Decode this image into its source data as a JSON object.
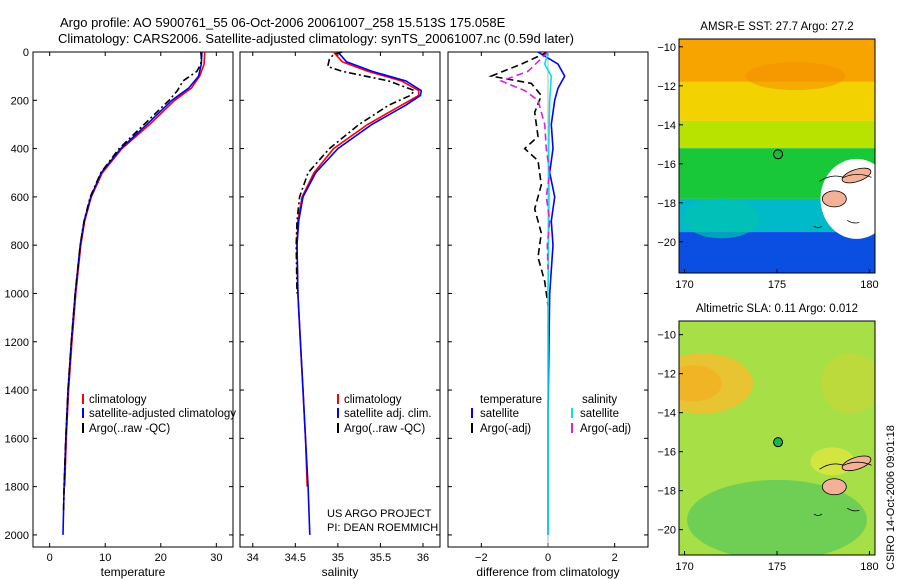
{
  "header": {
    "title_line1": "Argo profile: AO 5900761_55 06-Oct-2006 20061007_258 15.513S 175.058E",
    "title_line2": "Climatology: CARS2006. Satellite-adjusted climatology: synTS_20061007.nc (0.59d later)"
  },
  "credit": {
    "line1": "US ARGO PROJECT",
    "line2": "PI: DEAN ROEMMICH"
  },
  "side_label": "CSIRO 14-Oct-2006 09:01:18",
  "colors": {
    "climatology": "#ff0000",
    "satellite": "#0000ff",
    "argo": "#000000",
    "sat_sal": "#00e5e5",
    "argo_sal": "#e020e0"
  },
  "chart_data": [
    {
      "type": "line",
      "id": "temperature",
      "xlabel": "temperature",
      "ylabel": "",
      "xlim": [
        -3,
        33
      ],
      "ylim": [
        2050,
        0
      ],
      "xticks": [
        0,
        10,
        20,
        30
      ],
      "yticks": [
        0,
        200,
        400,
        600,
        800,
        1000,
        1200,
        1400,
        1600,
        1800,
        2000
      ],
      "legend": {
        "location": "lower-right",
        "entries": [
          "climatology",
          "satellite-adjusted climatology",
          "Argo(..raw -QC)"
        ]
      },
      "series": [
        {
          "name": "climatology",
          "color": "#ff0000",
          "style": "solid",
          "depth": [
            0,
            50,
            100,
            150,
            200,
            300,
            400,
            500,
            600,
            700,
            800,
            1000,
            1200,
            1400,
            1600,
            1800
          ],
          "values": [
            27.9,
            27.8,
            27.0,
            25.5,
            22.5,
            18.0,
            13.0,
            9.5,
            7.5,
            6.3,
            5.6,
            4.7,
            4.0,
            3.4,
            3.0,
            2.7
          ]
        },
        {
          "name": "satellite-adjusted climatology",
          "color": "#0000ff",
          "style": "solid",
          "depth": [
            0,
            50,
            100,
            150,
            200,
            300,
            400,
            500,
            600,
            700,
            800,
            1000,
            1200,
            1400,
            1600,
            1800,
            2000
          ],
          "values": [
            27.4,
            27.3,
            26.8,
            25.0,
            22.0,
            17.5,
            12.8,
            9.3,
            7.4,
            6.2,
            5.5,
            4.6,
            3.9,
            3.3,
            2.9,
            2.6,
            2.4
          ]
        },
        {
          "name": "Argo(..raw -QC)",
          "color": "#000000",
          "style": "dashdot",
          "depth": [
            0,
            20,
            50,
            80,
            120,
            160,
            200,
            300,
            400,
            500,
            600,
            700,
            800,
            1000,
            1200,
            1400,
            1600,
            1800,
            1900
          ],
          "values": [
            27.2,
            27.3,
            27.2,
            26.5,
            24.0,
            23.0,
            21.5,
            17.0,
            12.5,
            9.2,
            7.3,
            6.2,
            5.5,
            4.6,
            3.9,
            3.3,
            2.9,
            2.6,
            2.5
          ]
        }
      ]
    },
    {
      "type": "line",
      "id": "salinity",
      "xlabel": "salinity",
      "ylabel": "",
      "xlim": [
        33.85,
        36.2
      ],
      "ylim": [
        2050,
        0
      ],
      "xticks": [
        34,
        34.5,
        35,
        35.5,
        36
      ],
      "legend": {
        "location": "lower-right",
        "entries": [
          "climatology",
          "satellite adj. clim.",
          "Argo(..raw -QC)"
        ]
      },
      "series": [
        {
          "name": "climatology",
          "color": "#ff0000",
          "style": "solid",
          "depth": [
            0,
            40,
            80,
            120,
            160,
            180,
            220,
            300,
            400,
            500,
            600,
            700,
            800,
            1000,
            1200,
            1400,
            1600,
            1800
          ],
          "values": [
            34.95,
            35.05,
            35.35,
            35.75,
            35.95,
            35.95,
            35.75,
            35.35,
            34.95,
            34.72,
            34.58,
            34.53,
            34.52,
            34.53,
            34.56,
            34.59,
            34.62,
            34.64
          ]
        },
        {
          "name": "satellite adj. clim.",
          "color": "#0000ff",
          "style": "solid",
          "depth": [
            0,
            40,
            80,
            120,
            160,
            180,
            220,
            300,
            400,
            500,
            600,
            700,
            800,
            1000,
            1200,
            1400,
            1600,
            1800,
            2000
          ],
          "values": [
            35.0,
            35.1,
            35.4,
            35.8,
            35.98,
            35.97,
            35.8,
            35.4,
            35.0,
            34.74,
            34.59,
            34.54,
            34.52,
            34.53,
            34.56,
            34.59,
            34.62,
            34.65,
            34.67
          ]
        },
        {
          "name": "Argo(..raw -QC)",
          "color": "#000000",
          "style": "dashdot",
          "depth": [
            0,
            10,
            30,
            60,
            80,
            120,
            160,
            180,
            220,
            300,
            400,
            500,
            600,
            700,
            800,
            1000
          ],
          "values": [
            35.05,
            34.95,
            34.9,
            34.88,
            35.05,
            35.6,
            35.9,
            35.85,
            35.6,
            35.25,
            34.9,
            34.65,
            34.55,
            34.52,
            34.51,
            34.52
          ]
        }
      ]
    },
    {
      "type": "line",
      "id": "difference",
      "xlabel": "difference from climatology",
      "ylabel": "",
      "xlim": [
        -3,
        3
      ],
      "ylim": [
        2050,
        0
      ],
      "xticks": [
        -2,
        0,
        2
      ],
      "legend": {
        "location": "lower-center",
        "headers": [
          "temperature",
          "salinity"
        ],
        "entries": [
          "satellite",
          "Argo(-adj)",
          "satellite",
          "Argo(-adj)"
        ]
      },
      "series": [
        {
          "name": "satellite",
          "group": "temperature",
          "color": "#0000ff",
          "style": "solid",
          "depth": [
            0,
            50,
            100,
            150,
            200,
            300,
            400,
            500,
            600,
            700,
            800,
            1000,
            1500,
            2000
          ],
          "values": [
            -0.3,
            0.3,
            0.5,
            0.3,
            0.2,
            0.1,
            0.15,
            0.05,
            0.2,
            0.1,
            0.15,
            0.05,
            0.0,
            0.0
          ]
        },
        {
          "name": "Argo(-adj)",
          "group": "temperature",
          "color": "#000000",
          "style": "dashed",
          "depth": [
            0,
            50,
            100,
            130,
            180,
            250,
            350,
            400,
            450,
            550,
            650,
            750,
            850,
            950,
            1050
          ],
          "values": [
            0.0,
            -0.8,
            -1.7,
            -0.5,
            -0.2,
            -0.4,
            -0.3,
            -0.7,
            -0.3,
            -0.2,
            -0.4,
            -0.2,
            -0.3,
            -0.1,
            0.0
          ]
        },
        {
          "name": "satellite",
          "group": "salinity",
          "color": "#00e5e5",
          "style": "solid",
          "depth": [
            0,
            50,
            100,
            200,
            400,
            600,
            1000,
            2000
          ],
          "values": [
            0.0,
            -0.1,
            0.1,
            0.05,
            0.02,
            0.03,
            0.0,
            0.0
          ]
        },
        {
          "name": "Argo(-adj)",
          "group": "salinity",
          "color": "#e020e0",
          "style": "dashed",
          "depth": [
            0,
            40,
            80,
            120,
            160,
            200,
            300,
            400,
            500,
            600,
            700,
            800,
            900
          ],
          "values": [
            0.0,
            -0.3,
            -0.6,
            -1.4,
            -0.7,
            -0.3,
            -0.1,
            -0.05,
            0.05,
            -0.05,
            0.05,
            -0.02,
            0.0
          ]
        }
      ]
    },
    {
      "type": "heatmap",
      "id": "sst_map",
      "title": "AMSR-E SST: 27.7 Argo: 27.2",
      "xlim": [
        169.7,
        180.3
      ],
      "ylim": [
        -21.6,
        -9.6
      ],
      "xticks": [
        170,
        175,
        180
      ],
      "yticks": [
        -10,
        -12,
        -14,
        -16,
        -18,
        -20
      ],
      "marker": {
        "lon": 175.058,
        "lat": -15.513
      },
      "bands": [
        {
          "lat": [
            -9.6,
            -11.8
          ],
          "color": "#f7a400"
        },
        {
          "lat": [
            -11.8,
            -13.8
          ],
          "color": "#f2d200"
        },
        {
          "lat": [
            -13.8,
            -15.2
          ],
          "color": "#b8e300"
        },
        {
          "lat": [
            -15.2,
            -17.8
          ],
          "color": "#18c838"
        },
        {
          "lat": [
            -17.8,
            -19.5
          ],
          "color": "#00b9c9"
        },
        {
          "lat": [
            -19.5,
            -21.6
          ],
          "color": "#0a4fe2"
        }
      ]
    },
    {
      "type": "heatmap",
      "id": "sla_map",
      "title": "Altimetric SLA: 0.11 Argo: 0.012",
      "xlim": [
        169.7,
        180.3
      ],
      "ylim": [
        -21.3,
        -9.3
      ],
      "xticks": [
        170,
        175,
        180
      ],
      "yticks": [
        -10,
        -12,
        -14,
        -16,
        -18,
        -20
      ],
      "marker": {
        "lon": 175.058,
        "lat": -15.513
      },
      "base_color": "#a6e046"
    }
  ]
}
